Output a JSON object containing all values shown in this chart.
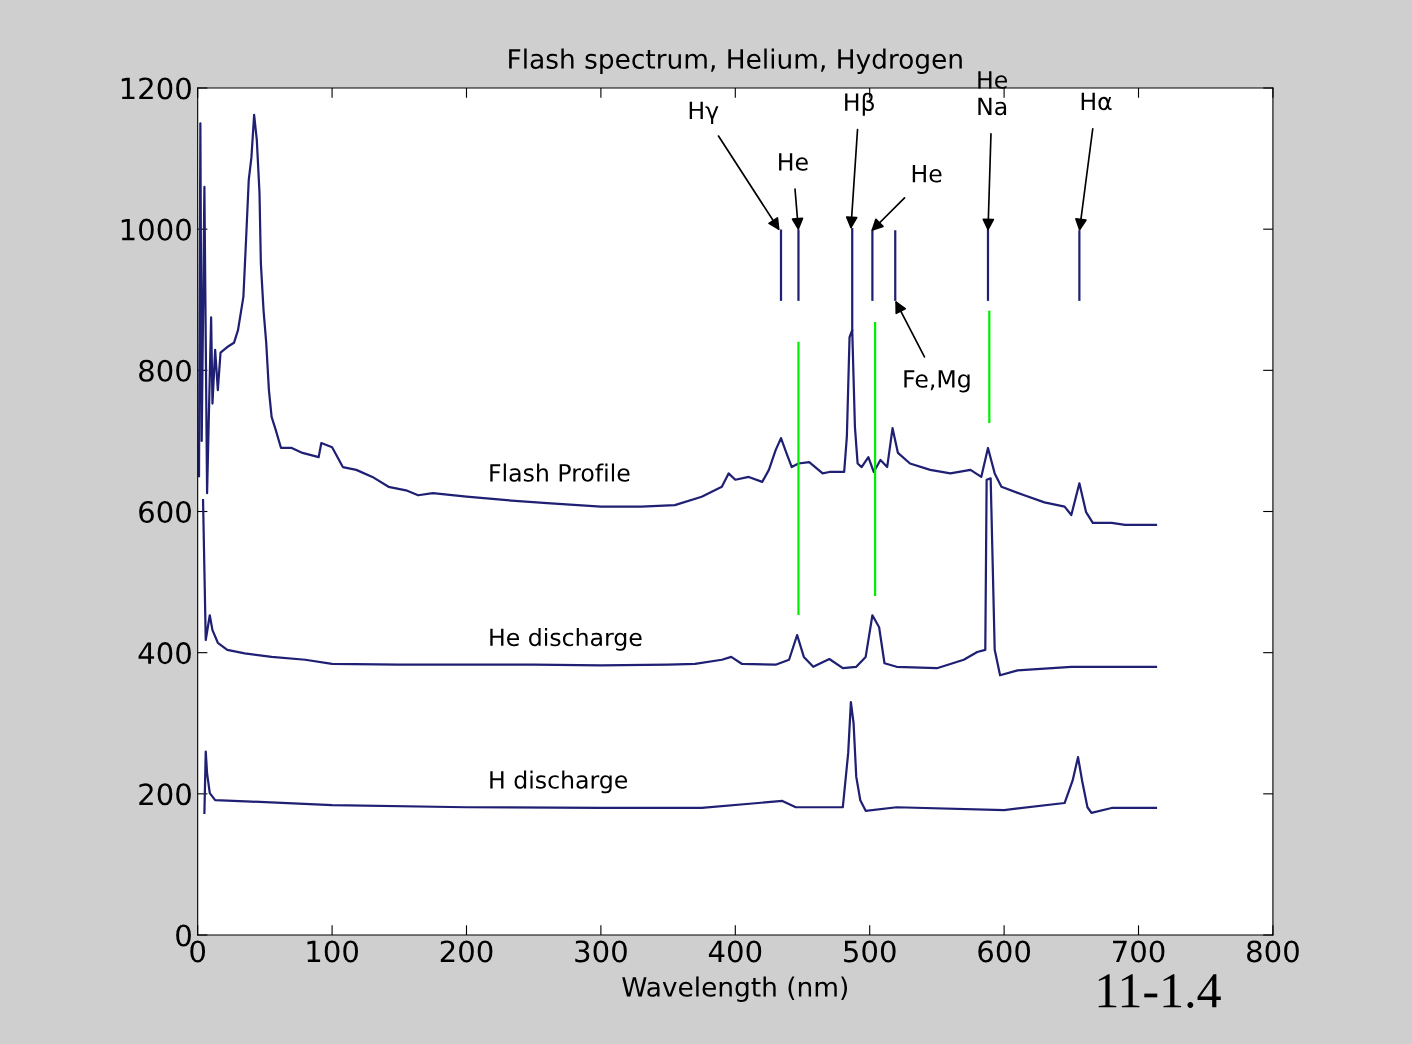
{
  "chart_data": {
    "type": "line",
    "title": "Flash spectrum, Helium, Hydrogen",
    "xlabel": "Wavelength (nm)",
    "xlim": [
      0,
      800
    ],
    "ylim": [
      0,
      1200
    ],
    "xticks": [
      0,
      100,
      200,
      300,
      400,
      500,
      600,
      700,
      800
    ],
    "yticks": [
      0,
      200,
      400,
      600,
      800,
      1000,
      1200
    ],
    "grid": false,
    "legend": false,
    "marker": "none",
    "line_style": "solid",
    "series": [
      {
        "name": "Flash Profile",
        "color": "#1f1f73",
        "x": [
          1,
          2,
          3,
          5,
          7,
          10,
          11,
          13,
          15,
          17,
          22,
          27,
          30,
          34,
          36,
          38,
          40,
          42,
          44,
          46,
          47,
          49,
          51,
          53,
          55,
          58,
          62,
          70,
          78,
          90,
          92,
          100,
          108,
          118,
          130,
          142,
          155,
          164,
          175,
          200,
          230,
          260,
          300,
          330,
          355,
          375,
          390,
          395,
          400,
          410,
          420,
          425,
          430,
          434,
          438,
          442,
          447,
          455,
          465,
          470,
          481,
          483,
          485,
          487,
          489,
          491,
          494,
          499,
          503,
          508,
          513,
          517,
          521,
          530,
          545,
          560,
          575,
          583,
          588,
          593,
          598,
          615,
          630,
          645,
          650,
          656,
          661,
          666,
          680,
          690,
          713
        ],
        "values": [
          650,
          1150,
          700,
          1060,
          626,
          875,
          753,
          829,
          772,
          825,
          833,
          839,
          857,
          904,
          985,
          1070,
          1102,
          1162,
          1126,
          1051,
          952,
          885,
          839,
          772,
          734,
          716,
          690,
          690,
          683,
          677,
          697,
          691,
          663,
          659,
          649,
          635,
          630,
          623,
          626,
          621,
          616,
          612,
          607,
          607,
          609,
          621,
          635,
          654,
          645,
          649,
          642,
          659,
          687,
          704,
          683,
          663,
          668,
          670,
          654,
          656,
          656,
          706,
          847,
          857,
          720,
          668,
          663,
          677,
          656,
          673,
          663,
          718,
          683,
          668,
          659,
          654,
          659,
          649,
          690,
          654,
          635,
          623,
          613,
          607,
          595,
          640,
          599,
          584,
          584,
          581,
          581
        ]
      },
      {
        "name": "He discharge",
        "color": "#1f1f73",
        "x": [
          4,
          6,
          9,
          11,
          15,
          22,
          35,
          55,
          80,
          100,
          150,
          200,
          250,
          300,
          350,
          370,
          390,
          397,
          405,
          430,
          440,
          446,
          451,
          458,
          470,
          480,
          490,
          497,
          502,
          507,
          511,
          520,
          550,
          570,
          580,
          586,
          587,
          590,
          593,
          597,
          610,
          650,
          713
        ],
        "values": [
          616,
          418,
          453,
          432,
          414,
          404,
          399,
          394,
          390,
          384,
          383,
          383,
          383,
          382,
          383,
          384,
          390,
          394,
          384,
          383,
          390,
          425,
          394,
          380,
          391,
          378,
          380,
          394,
          453,
          436,
          385,
          380,
          378,
          390,
          401,
          404,
          645,
          647,
          404,
          368,
          375,
          380,
          380
        ]
      },
      {
        "name": "H discharge",
        "color": "#1f1f73",
        "x": [
          5,
          6,
          7,
          9,
          13,
          40,
          100,
          200,
          300,
          375,
          435,
          445,
          480,
          484,
          486,
          488,
          490,
          493,
          497,
          520,
          600,
          645,
          651,
          655,
          658,
          662,
          665,
          680,
          713
        ],
        "values": [
          173,
          260,
          229,
          201,
          191,
          189,
          184,
          181,
          180,
          180,
          190,
          181,
          181,
          258,
          330,
          300,
          224,
          191,
          176,
          181,
          177,
          187,
          219,
          252,
          219,
          181,
          173,
          180,
          180
        ]
      },
      {
        "color": "#1f1f73",
        "x": [
          434,
          434
        ],
        "values": [
          998,
          900
        ]
      },
      {
        "color": "#1f1f73",
        "x": [
          447,
          447
        ],
        "values": [
          998,
          900
        ]
      },
      {
        "color": "#1f1f73",
        "x": [
          487,
          487
        ],
        "values": [
          1000,
          857
        ]
      },
      {
        "color": "#1f1f73",
        "x": [
          502,
          502
        ],
        "values": [
          997,
          900
        ]
      },
      {
        "color": "#1f1f73",
        "x": [
          519,
          519
        ],
        "values": [
          997,
          900
        ]
      },
      {
        "color": "#1f1f73",
        "x": [
          588,
          588
        ],
        "values": [
          998,
          900
        ]
      },
      {
        "color": "#1f1f73",
        "x": [
          656,
          656
        ],
        "values": [
          997,
          900
        ]
      },
      {
        "color": "#00ee00",
        "x": [
          447,
          447
        ],
        "values": [
          839,
          455
        ]
      },
      {
        "color": "#00ee00",
        "x": [
          504,
          504
        ],
        "values": [
          867,
          482
        ]
      },
      {
        "color": "#00ee00",
        "x": [
          589,
          589
        ],
        "values": [
          883,
          727
        ]
      }
    ],
    "annotations": [
      {
        "text": "Hγ",
        "x": 433,
        "y": 998
      },
      {
        "text": "He",
        "x": 447,
        "y": 998
      },
      {
        "text": "Hβ",
        "x": 486,
        "y": 1000
      },
      {
        "text": "He",
        "x": 501,
        "y": 997
      },
      {
        "text": "He\nNa",
        "x": 588,
        "y": 997
      },
      {
        "text": "Hα",
        "x": 656,
        "y": 997
      },
      {
        "text": "Fe,Mg",
        "x": 519,
        "y": 899
      },
      "11-1.4"
    ]
  }
}
